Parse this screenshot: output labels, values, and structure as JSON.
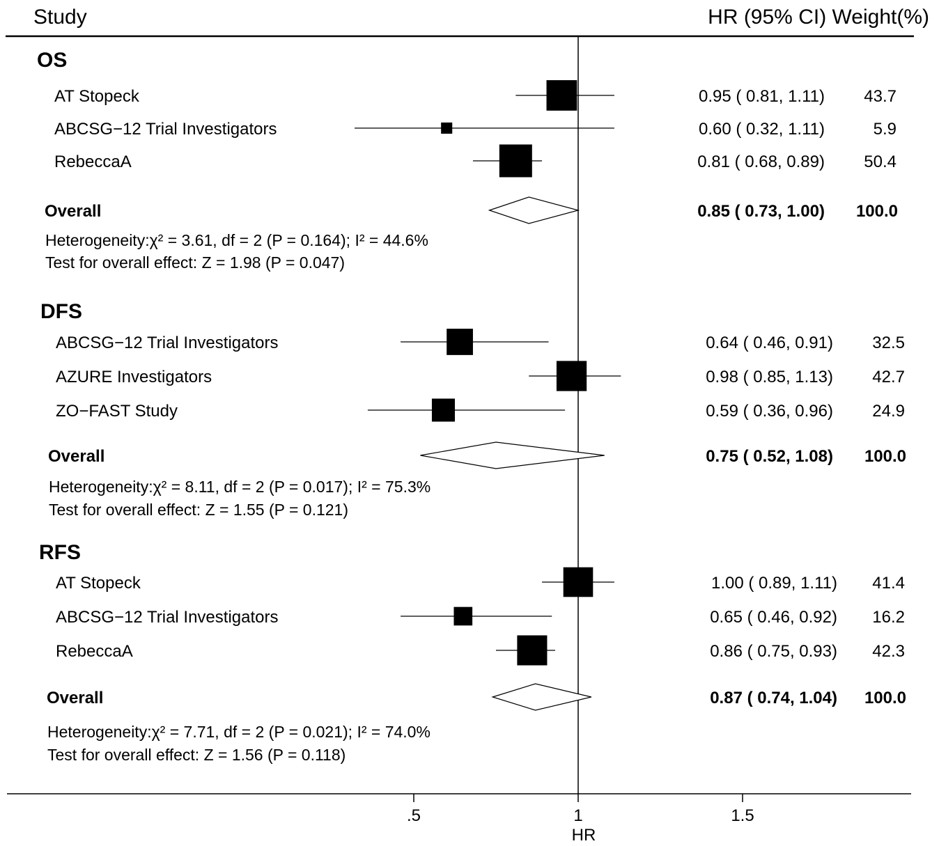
{
  "chart_data": {
    "type": "forest",
    "headers": {
      "study": "Study",
      "right": "HR (95% CI) Weight(%)"
    },
    "xlabel": "HR",
    "x_ticks": [
      ".5",
      "1",
      "1.5"
    ],
    "x_tick_values": [
      0.5,
      1,
      1.5
    ],
    "reference_line": 1,
    "groups": [
      {
        "label": "OS",
        "studies": [
          {
            "name": "AT Stopeck",
            "hr": 0.95,
            "lo": 0.81,
            "hi": 1.11,
            "ci_text": "0.95 ( 0.81, 1.11)",
            "weight": "43.7"
          },
          {
            "name": "ABCSG−12 Trial Investigators",
            "hr": 0.6,
            "lo": 0.32,
            "hi": 1.11,
            "ci_text": "0.60 ( 0.32, 1.11)",
            "weight": "5.9"
          },
          {
            "name": "RebeccaA",
            "hr": 0.81,
            "lo": 0.68,
            "hi": 0.89,
            "ci_text": "0.81 ( 0.68, 0.89)",
            "weight": "50.4"
          }
        ],
        "overall": {
          "label": "Overall",
          "hr": 0.85,
          "lo": 0.73,
          "hi": 1.0,
          "ci_text": "0.85 ( 0.73, 1.00)",
          "weight": "100.0"
        },
        "heterogeneity": "Heterogeneity:χ² = 3.61, df = 2 (P = 0.164); I² = 44.6%",
        "overall_effect": "Test for overall effect: Z = 1.98 (P = 0.047)"
      },
      {
        "label": "DFS",
        "studies": [
          {
            "name": "ABCSG−12 Trial Investigators",
            "hr": 0.64,
            "lo": 0.46,
            "hi": 0.91,
            "ci_text": "0.64 ( 0.46, 0.91)",
            "weight": "32.5"
          },
          {
            "name": "AZURE Investigators",
            "hr": 0.98,
            "lo": 0.85,
            "hi": 1.13,
            "ci_text": "0.98 ( 0.85, 1.13)",
            "weight": "42.7"
          },
          {
            "name": "ZO−FAST Study",
            "hr": 0.59,
            "lo": 0.36,
            "hi": 0.96,
            "ci_text": "0.59 ( 0.36, 0.96)",
            "weight": "24.9"
          }
        ],
        "overall": {
          "label": "Overall",
          "hr": 0.75,
          "lo": 0.52,
          "hi": 1.08,
          "ci_text": "0.75 ( 0.52, 1.08)",
          "weight": "100.0"
        },
        "heterogeneity": "Heterogeneity:χ² = 8.11, df = 2 (P = 0.017); I² = 75.3%",
        "overall_effect": "Test for overall effect: Z = 1.55 (P = 0.121)"
      },
      {
        "label": "RFS",
        "studies": [
          {
            "name": "AT Stopeck",
            "hr": 1.0,
            "lo": 0.89,
            "hi": 1.11,
            "ci_text": "1.00 ( 0.89, 1.11)",
            "weight": "41.4"
          },
          {
            "name": "ABCSG−12 Trial Investigators",
            "hr": 0.65,
            "lo": 0.46,
            "hi": 0.92,
            "ci_text": "0.65 ( 0.46, 0.92)",
            "weight": "16.2"
          },
          {
            "name": "RebeccaA",
            "hr": 0.86,
            "lo": 0.75,
            "hi": 0.93,
            "ci_text": "0.86 ( 0.75, 0.93)",
            "weight": "42.3"
          }
        ],
        "overall": {
          "label": "Overall",
          "hr": 0.87,
          "lo": 0.74,
          "hi": 1.04,
          "ci_text": "0.87 ( 0.74, 1.04)",
          "weight": "100.0"
        },
        "heterogeneity": "Heterogeneity:χ² = 7.71, df = 2 (P = 0.021); I² = 74.0%",
        "overall_effect": "Test for overall effect: Z = 1.56 (P = 0.118)"
      }
    ]
  }
}
